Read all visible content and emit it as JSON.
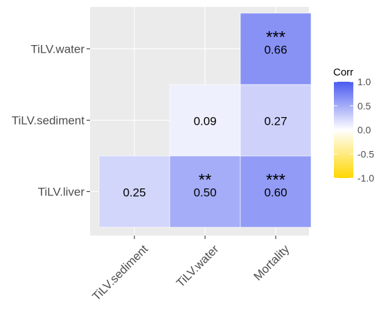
{
  "chart_data": {
    "type": "heatmap",
    "title": "",
    "xlabel": "",
    "ylabel": "",
    "x_categories": [
      "TiLV.sediment",
      "TiLV.water",
      "Mortality"
    ],
    "y_categories": [
      "TiLV.liver",
      "TiLV.sediment",
      "TiLV.water"
    ],
    "cells": [
      {
        "x": "TiLV.sediment",
        "y": "TiLV.liver",
        "value": 0.25,
        "label": "0.25",
        "stars": ""
      },
      {
        "x": "TiLV.water",
        "y": "TiLV.liver",
        "value": 0.5,
        "label": "0.50",
        "stars": "**"
      },
      {
        "x": "Mortality",
        "y": "TiLV.liver",
        "value": 0.6,
        "label": "0.60",
        "stars": "***"
      },
      {
        "x": "TiLV.water",
        "y": "TiLV.sediment",
        "value": 0.09,
        "label": "0.09",
        "stars": ""
      },
      {
        "x": "Mortality",
        "y": "TiLV.sediment",
        "value": 0.27,
        "label": "0.27",
        "stars": ""
      },
      {
        "x": "Mortality",
        "y": "TiLV.water",
        "value": 0.66,
        "label": "0.66",
        "stars": "***"
      }
    ],
    "legend": {
      "title": "Corr",
      "position": "right",
      "range": [
        -1.0,
        1.0
      ],
      "ticks": [
        "1.0",
        "0.5",
        "0.0",
        "-0.5",
        "-1.0"
      ],
      "tick_values": [
        1.0,
        0.5,
        0.0,
        -0.5,
        -1.0
      ],
      "colors": {
        "low": "#FFD700",
        "mid": "#FFFFFF",
        "high": "#4A5AF0"
      }
    },
    "grid": true,
    "panel_background": "#EBEBEB"
  }
}
